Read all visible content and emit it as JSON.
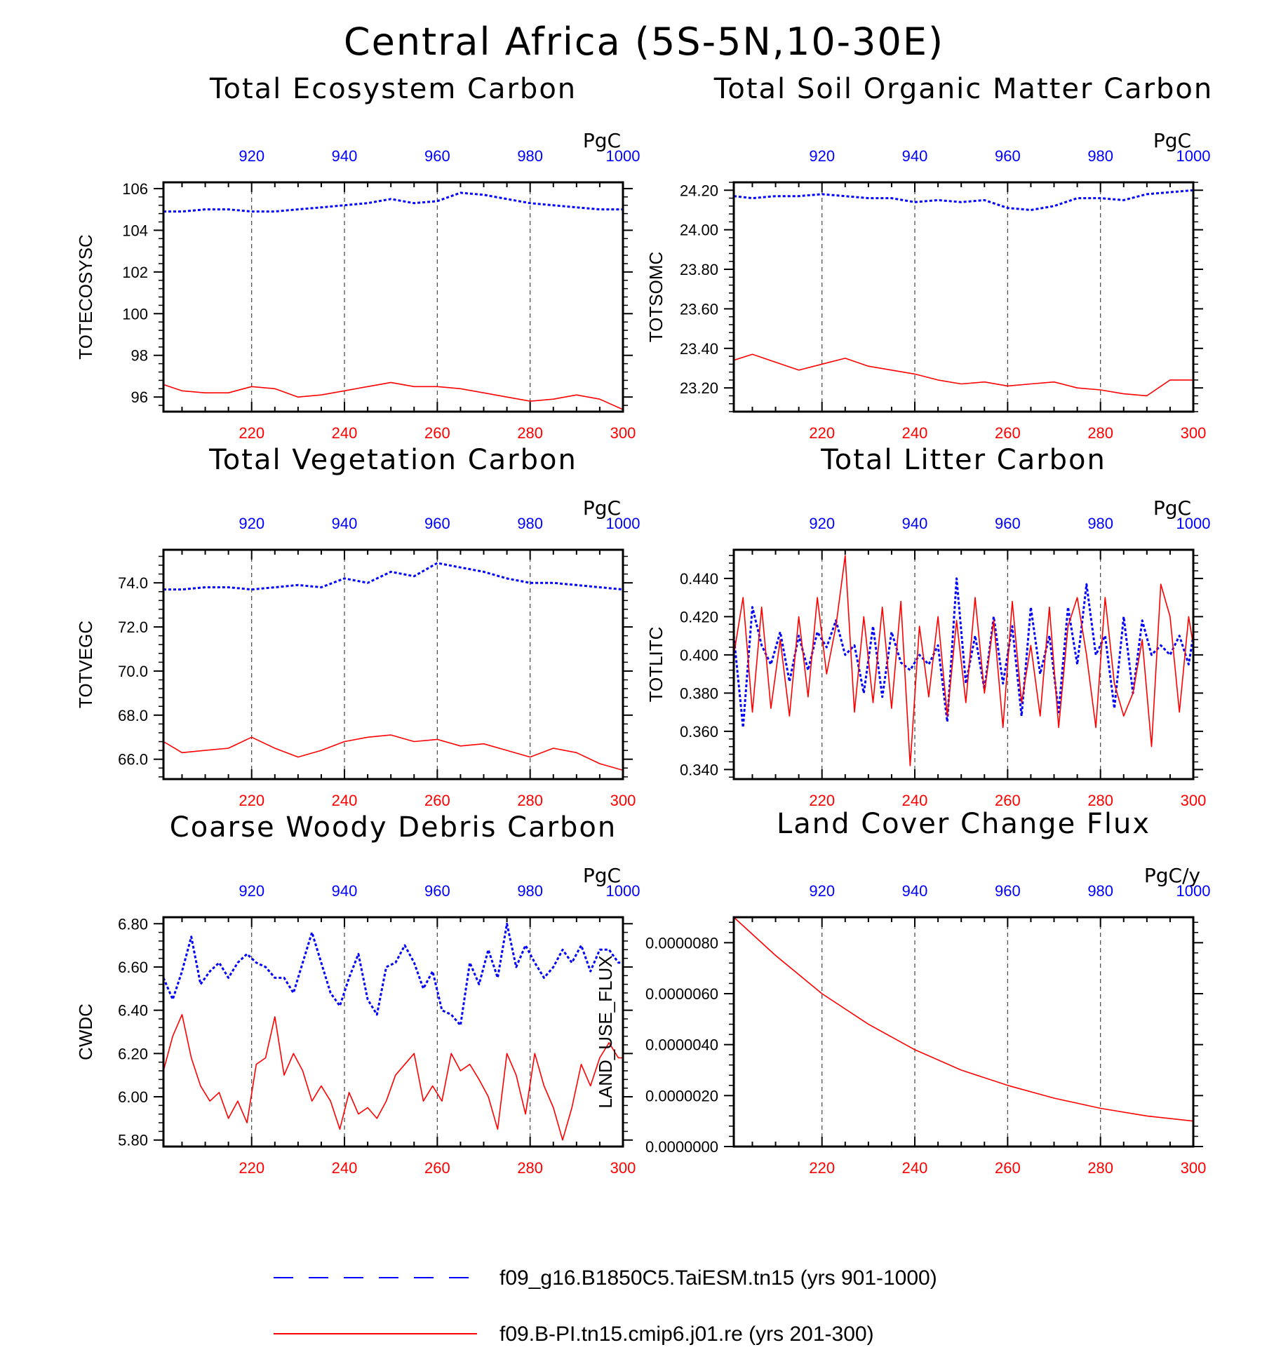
{
  "figure": {
    "title": "Central Africa (5S-5N,10-30E)"
  },
  "colors": {
    "series_a": "#0000ff",
    "series_b": "#ff0000",
    "axis": "#000000",
    "grid": "#444444"
  },
  "legend": {
    "items": [
      {
        "label": "f09_g16.B1850C5.TaiESM.tn15 (yrs 901-1000)",
        "style": "dashed",
        "color": "#0000ff"
      },
      {
        "label": "f09.B-PI.tn15.cmip6.j01.re (yrs 201-300)",
        "style": "solid",
        "color": "#ff0000"
      }
    ]
  },
  "chart_data": [
    {
      "type": "line",
      "title": "Total Ecosystem Carbon",
      "ylabel": "TOTECOSYSC",
      "units": "PgC",
      "xlim_bottom": [
        201,
        300
      ],
      "xticks_bottom": [
        "220",
        "240",
        "260",
        "280",
        "300"
      ],
      "xlim_top": [
        901,
        1000
      ],
      "xticks_top": [
        "920",
        "940",
        "960",
        "980",
        "1000"
      ],
      "ylim": [
        95.3,
        106.3
      ],
      "yticks": [
        "96",
        "98",
        "100",
        "102",
        "104",
        "106"
      ],
      "grid": "vertical dashed at 220, 240, 260, 280",
      "series": [
        {
          "axis": "top",
          "style": "dotted",
          "color": "#0000ff",
          "x": [
            901,
            905,
            910,
            915,
            920,
            925,
            930,
            935,
            940,
            945,
            950,
            955,
            960,
            965,
            970,
            975,
            980,
            985,
            990,
            995,
            1000
          ],
          "y": [
            104.9,
            104.9,
            105.0,
            105.0,
            104.9,
            104.9,
            105.0,
            105.1,
            105.2,
            105.3,
            105.5,
            105.3,
            105.4,
            105.8,
            105.7,
            105.5,
            105.3,
            105.2,
            105.1,
            105.0,
            105.0
          ]
        },
        {
          "axis": "bottom",
          "style": "solid",
          "color": "#ff0000",
          "x": [
            201,
            205,
            210,
            215,
            220,
            225,
            230,
            235,
            240,
            245,
            250,
            255,
            260,
            265,
            270,
            275,
            280,
            285,
            290,
            295,
            300
          ],
          "y": [
            96.6,
            96.3,
            96.2,
            96.2,
            96.5,
            96.4,
            96.0,
            96.1,
            96.3,
            96.5,
            96.7,
            96.5,
            96.5,
            96.4,
            96.2,
            96.0,
            95.8,
            95.9,
            96.1,
            95.9,
            95.4
          ]
        }
      ]
    },
    {
      "type": "line",
      "title": "Total Soil Organic Matter Carbon",
      "ylabel": "TOTSOMC",
      "units": "PgC",
      "xlim_bottom": [
        201,
        300
      ],
      "xticks_bottom": [
        "220",
        "240",
        "260",
        "280",
        "300"
      ],
      "xlim_top": [
        901,
        1000
      ],
      "xticks_top": [
        "920",
        "940",
        "960",
        "980",
        "1000"
      ],
      "ylim": [
        23.08,
        24.24
      ],
      "yticks": [
        "23.20",
        "23.40",
        "23.60",
        "23.80",
        "24.00",
        "24.20"
      ],
      "grid": "vertical dashed at 220, 240, 260, 280",
      "series": [
        {
          "axis": "top",
          "style": "dotted",
          "color": "#0000ff",
          "x": [
            901,
            905,
            910,
            915,
            920,
            925,
            930,
            935,
            940,
            945,
            950,
            955,
            960,
            965,
            970,
            975,
            980,
            985,
            990,
            995,
            1000
          ],
          "y": [
            24.17,
            24.16,
            24.17,
            24.17,
            24.18,
            24.17,
            24.16,
            24.16,
            24.14,
            24.15,
            24.14,
            24.15,
            24.11,
            24.1,
            24.12,
            24.16,
            24.16,
            24.15,
            24.18,
            24.19,
            24.2
          ]
        },
        {
          "axis": "bottom",
          "style": "solid",
          "color": "#ff0000",
          "x": [
            201,
            205,
            210,
            215,
            220,
            225,
            230,
            235,
            240,
            245,
            250,
            255,
            260,
            265,
            270,
            275,
            280,
            285,
            290,
            295,
            300
          ],
          "y": [
            23.34,
            23.37,
            23.33,
            23.29,
            23.32,
            23.35,
            23.31,
            23.29,
            23.27,
            23.24,
            23.22,
            23.23,
            23.21,
            23.22,
            23.23,
            23.2,
            23.19,
            23.17,
            23.16,
            23.24,
            23.24
          ]
        }
      ]
    },
    {
      "type": "line",
      "title": "Total Vegetation Carbon",
      "ylabel": "TOTVEGC",
      "units": "PgC",
      "xlim_bottom": [
        201,
        300
      ],
      "xticks_bottom": [
        "220",
        "240",
        "260",
        "280",
        "300"
      ],
      "xlim_top": [
        901,
        1000
      ],
      "xticks_top": [
        "920",
        "940",
        "960",
        "980",
        "1000"
      ],
      "ylim": [
        65.1,
        75.5
      ],
      "yticks": [
        "66.0",
        "68.0",
        "70.0",
        "72.0",
        "74.0"
      ],
      "grid": "vertical dashed at 220, 240, 260, 280",
      "series": [
        {
          "axis": "top",
          "style": "dotted",
          "color": "#0000ff",
          "x": [
            901,
            905,
            910,
            915,
            920,
            925,
            930,
            935,
            940,
            945,
            950,
            955,
            960,
            965,
            970,
            975,
            980,
            985,
            990,
            995,
            1000
          ],
          "y": [
            73.7,
            73.7,
            73.8,
            73.8,
            73.7,
            73.8,
            73.9,
            73.8,
            74.2,
            74.0,
            74.5,
            74.3,
            74.9,
            74.7,
            74.5,
            74.2,
            74.0,
            74.0,
            73.9,
            73.8,
            73.7
          ]
        },
        {
          "axis": "bottom",
          "style": "solid",
          "color": "#ff0000",
          "x": [
            201,
            205,
            210,
            215,
            220,
            225,
            230,
            235,
            240,
            245,
            250,
            255,
            260,
            265,
            270,
            275,
            280,
            285,
            290,
            295,
            300
          ],
          "y": [
            66.8,
            66.3,
            66.4,
            66.5,
            67.0,
            66.5,
            66.1,
            66.4,
            66.8,
            67.0,
            67.1,
            66.8,
            66.9,
            66.6,
            66.7,
            66.4,
            66.1,
            66.5,
            66.3,
            65.8,
            65.5
          ]
        }
      ]
    },
    {
      "type": "line",
      "title": "Total Litter Carbon",
      "ylabel": "TOTLITC",
      "units": "PgC",
      "xlim_bottom": [
        201,
        300
      ],
      "xticks_bottom": [
        "220",
        "240",
        "260",
        "280",
        "300"
      ],
      "xlim_top": [
        901,
        1000
      ],
      "xticks_top": [
        "920",
        "940",
        "960",
        "980",
        "1000"
      ],
      "ylim": [
        0.335,
        0.455
      ],
      "yticks": [
        "0.340",
        "0.360",
        "0.380",
        "0.400",
        "0.420",
        "0.440"
      ],
      "grid": "vertical dashed at 220, 240, 260, 280",
      "series": [
        {
          "axis": "top",
          "style": "dotted",
          "color": "#0000ff",
          "x": [
            901,
            903,
            905,
            907,
            909,
            911,
            913,
            915,
            917,
            919,
            921,
            923,
            925,
            927,
            929,
            931,
            933,
            935,
            937,
            939,
            941,
            943,
            945,
            947,
            949,
            951,
            953,
            955,
            957,
            959,
            961,
            963,
            965,
            967,
            969,
            971,
            973,
            975,
            977,
            979,
            981,
            983,
            985,
            987,
            989,
            991,
            993,
            995,
            997,
            999,
            1000
          ],
          "y": [
            0.41,
            0.362,
            0.425,
            0.405,
            0.395,
            0.412,
            0.386,
            0.41,
            0.392,
            0.412,
            0.404,
            0.418,
            0.4,
            0.405,
            0.38,
            0.415,
            0.378,
            0.412,
            0.396,
            0.392,
            0.4,
            0.395,
            0.405,
            0.365,
            0.44,
            0.385,
            0.41,
            0.382,
            0.42,
            0.385,
            0.415,
            0.368,
            0.425,
            0.39,
            0.41,
            0.37,
            0.425,
            0.395,
            0.437,
            0.4,
            0.41,
            0.372,
            0.42,
            0.38,
            0.418,
            0.4,
            0.405,
            0.4,
            0.41,
            0.395,
            0.41
          ]
        },
        {
          "axis": "bottom",
          "style": "solid",
          "color": "#ff0000",
          "x": [
            201,
            203,
            205,
            207,
            209,
            211,
            213,
            215,
            217,
            219,
            221,
            223,
            225,
            227,
            229,
            231,
            233,
            235,
            237,
            239,
            241,
            243,
            245,
            247,
            249,
            251,
            253,
            255,
            257,
            259,
            261,
            263,
            265,
            267,
            269,
            271,
            273,
            275,
            277,
            279,
            281,
            283,
            285,
            287,
            289,
            291,
            293,
            295,
            297,
            299,
            300
          ],
          "y": [
            0.4,
            0.43,
            0.37,
            0.425,
            0.372,
            0.408,
            0.368,
            0.42,
            0.378,
            0.43,
            0.39,
            0.415,
            0.452,
            0.37,
            0.42,
            0.375,
            0.425,
            0.372,
            0.428,
            0.342,
            0.415,
            0.378,
            0.42,
            0.368,
            0.418,
            0.375,
            0.43,
            0.38,
            0.418,
            0.362,
            0.428,
            0.375,
            0.405,
            0.368,
            0.425,
            0.362,
            0.415,
            0.43,
            0.4,
            0.362,
            0.43,
            0.385,
            0.368,
            0.38,
            0.408,
            0.352,
            0.437,
            0.42,
            0.37,
            0.42,
            0.405
          ]
        }
      ]
    },
    {
      "type": "line",
      "title": "Coarse Woody Debris Carbon",
      "ylabel": "CWDC",
      "units": "PgC",
      "xlim_bottom": [
        201,
        300
      ],
      "xticks_bottom": [
        "220",
        "240",
        "260",
        "280",
        "300"
      ],
      "xlim_top": [
        901,
        1000
      ],
      "xticks_top": [
        "920",
        "940",
        "960",
        "980",
        "1000"
      ],
      "ylim": [
        5.77,
        6.83
      ],
      "yticks": [
        "5.80",
        "6.00",
        "6.20",
        "6.40",
        "6.60",
        "6.80"
      ],
      "grid": "vertical dashed at 220, 240, 260, 280",
      "series": [
        {
          "axis": "top",
          "style": "dotted",
          "color": "#0000ff",
          "x": [
            901,
            903,
            905,
            907,
            909,
            911,
            913,
            915,
            917,
            919,
            921,
            923,
            925,
            927,
            929,
            931,
            933,
            935,
            937,
            939,
            941,
            943,
            945,
            947,
            949,
            951,
            953,
            955,
            957,
            959,
            961,
            963,
            965,
            967,
            969,
            971,
            973,
            975,
            977,
            979,
            981,
            983,
            985,
            987,
            989,
            991,
            993,
            995,
            997,
            999,
            1000
          ],
          "y": [
            6.55,
            6.45,
            6.58,
            6.74,
            6.52,
            6.58,
            6.62,
            6.55,
            6.62,
            6.66,
            6.62,
            6.6,
            6.55,
            6.55,
            6.48,
            6.62,
            6.76,
            6.62,
            6.48,
            6.42,
            6.55,
            6.66,
            6.45,
            6.38,
            6.6,
            6.62,
            6.7,
            6.62,
            6.5,
            6.58,
            6.4,
            6.38,
            6.33,
            6.62,
            6.52,
            6.68,
            6.55,
            6.8,
            6.6,
            6.7,
            6.62,
            6.55,
            6.6,
            6.68,
            6.62,
            6.7,
            6.58,
            6.68,
            6.68,
            6.62,
            6.62
          ]
        },
        {
          "axis": "bottom",
          "style": "solid",
          "color": "#ff0000",
          "x": [
            201,
            203,
            205,
            207,
            209,
            211,
            213,
            215,
            217,
            219,
            221,
            223,
            225,
            227,
            229,
            231,
            233,
            235,
            237,
            239,
            241,
            243,
            245,
            247,
            249,
            251,
            253,
            255,
            257,
            259,
            261,
            263,
            265,
            267,
            269,
            271,
            273,
            275,
            277,
            279,
            281,
            283,
            285,
            287,
            289,
            291,
            293,
            295,
            297,
            299,
            300
          ],
          "y": [
            6.12,
            6.28,
            6.38,
            6.18,
            6.05,
            5.98,
            6.02,
            5.9,
            5.98,
            5.88,
            6.15,
            6.18,
            6.37,
            6.1,
            6.2,
            6.12,
            5.98,
            6.05,
            5.98,
            5.85,
            6.02,
            5.92,
            5.95,
            5.9,
            5.98,
            6.1,
            6.15,
            6.2,
            5.98,
            6.05,
            5.98,
            6.2,
            6.12,
            6.15,
            6.08,
            6.0,
            5.85,
            6.2,
            6.1,
            5.92,
            6.2,
            6.05,
            5.95,
            5.8,
            5.95,
            6.15,
            6.05,
            6.18,
            6.25,
            6.18,
            6.18
          ]
        }
      ]
    },
    {
      "type": "line",
      "title": "Land Cover Change Flux",
      "ylabel": "LAND_USE_FLUX",
      "units": "PgC/y",
      "xlim_bottom": [
        201,
        300
      ],
      "xticks_bottom": [
        "220",
        "240",
        "260",
        "280",
        "300"
      ],
      "xlim_top": [
        901,
        1000
      ],
      "xticks_top": [
        "920",
        "940",
        "960",
        "980",
        "1000"
      ],
      "ylim": [
        0,
        9e-06
      ],
      "yticks": [
        "0.0000000",
        "0.0000020",
        "0.0000040",
        "0.0000060",
        "0.0000080"
      ],
      "grid": "vertical dashed at 220, 240, 260, 280",
      "series": [
        {
          "axis": "bottom",
          "style": "solid",
          "color": "#ff0000",
          "x": [
            201,
            210,
            220,
            230,
            240,
            250,
            260,
            270,
            280,
            290,
            300
          ],
          "y": [
            9e-06,
            7.5e-06,
            6e-06,
            4.8e-06,
            3.8e-06,
            3e-06,
            2.4e-06,
            1.9e-06,
            1.5e-06,
            1.2e-06,
            1e-06
          ]
        }
      ]
    }
  ]
}
